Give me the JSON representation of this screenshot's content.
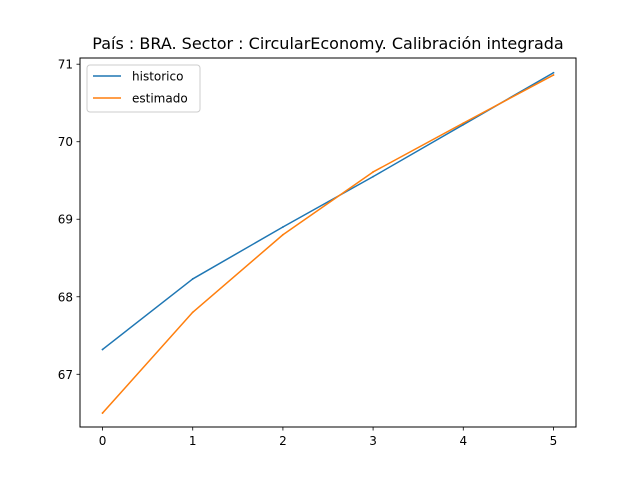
{
  "chart_data": {
    "type": "line",
    "title": "País : BRA. Sector : CircularEconomy. Calibración integrada",
    "xlabel": "",
    "ylabel": "",
    "x": [
      0,
      1,
      2,
      3,
      4,
      5
    ],
    "xlim": [
      -0.25,
      5.25
    ],
    "ylim": [
      66.32,
      71.08
    ],
    "xticks": [
      0,
      1,
      2,
      3,
      4,
      5
    ],
    "yticks": [
      67,
      68,
      69,
      70,
      71
    ],
    "grid": false,
    "legend_position": "top-left",
    "series": [
      {
        "name": "historico",
        "color": "#1f77b4",
        "values": [
          67.32,
          68.23,
          68.9,
          69.55,
          70.22,
          70.89
        ]
      },
      {
        "name": "estimado",
        "color": "#ff7f0e",
        "values": [
          66.5,
          67.8,
          68.8,
          69.61,
          70.24,
          70.86
        ]
      }
    ]
  }
}
